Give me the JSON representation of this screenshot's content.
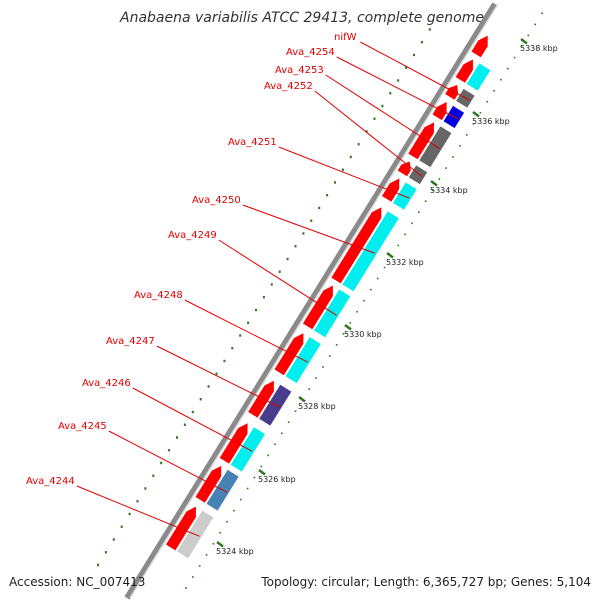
{
  "title": "Anabaena variabilis ATCC 29413, complete genome",
  "accession": "Accession: NC_007413",
  "summary": "Topology: circular; Length: 6,365,727 bp; Genes: 5,104",
  "colors": {
    "label": "#e00000",
    "leader": "#e00000",
    "tick": "#2a7a1a",
    "backbone": "#777777",
    "cds_forward": "#ff0000",
    "gene_cyan": "#00eeee",
    "gene_gray": "#cccccc",
    "gene_dark_gray": "#666666",
    "gene_blue": "#0000dd",
    "gene_steel": "#4682b4",
    "gene_indigo": "#483d8b"
  },
  "ticks": [
    {
      "label": "5324 kbp"
    },
    {
      "label": "5326 kbp"
    },
    {
      "label": "5328 kbp"
    },
    {
      "label": "5330 kbp"
    },
    {
      "label": "5332 kbp"
    },
    {
      "label": "5334 kbp"
    },
    {
      "label": "5336 kbp"
    },
    {
      "label": "5338 kbp"
    }
  ],
  "genes": [
    {
      "name": "Ava_4244",
      "color": "#cccccc"
    },
    {
      "name": "Ava_4245",
      "color": "#4682b4"
    },
    {
      "name": "Ava_4246",
      "color": "#00eeee"
    },
    {
      "name": "Ava_4247",
      "color": "#483d8b"
    },
    {
      "name": "Ava_4248",
      "color": "#00eeee"
    },
    {
      "name": "Ava_4249",
      "color": "#00eeee"
    },
    {
      "name": "Ava_4250",
      "color": "#00eeee"
    },
    {
      "name": "Ava_4251",
      "color": "#00eeee"
    },
    {
      "name": "Ava_4252",
      "color": "#666666"
    },
    {
      "name": "Ava_4253",
      "color": "#666666"
    },
    {
      "name": "Ava_4254",
      "color": "#0000dd"
    },
    {
      "name": "nifW",
      "color": "#666666"
    }
  ]
}
